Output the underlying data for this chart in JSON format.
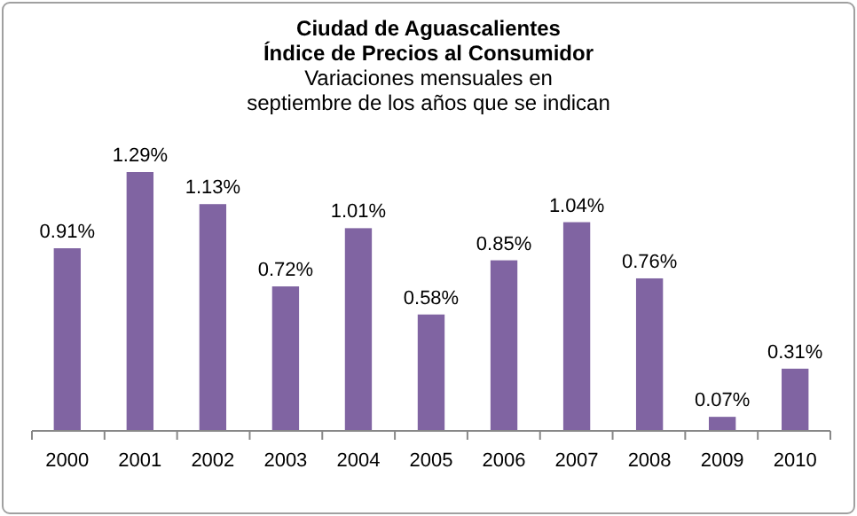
{
  "chart_data": {
    "type": "bar",
    "title": "Ciudad de Aguascalientes\nÍndice de Precios al Consumidor",
    "subtitle": "Variaciones mensuales en\nseptiembre de los años que se indican",
    "categories": [
      "2000",
      "2001",
      "2002",
      "2003",
      "2004",
      "2005",
      "2006",
      "2007",
      "2008",
      "2009",
      "2010"
    ],
    "values": [
      0.91,
      1.29,
      1.13,
      0.72,
      1.01,
      0.58,
      0.85,
      1.04,
      0.76,
      0.07,
      0.31
    ],
    "value_labels": [
      "0.91%",
      "1.29%",
      "1.13%",
      "0.72%",
      "1.01%",
      "0.58%",
      "0.85%",
      "1.04%",
      "0.76%",
      "0.07%",
      "0.31%"
    ],
    "color": "#8064a2"
  }
}
